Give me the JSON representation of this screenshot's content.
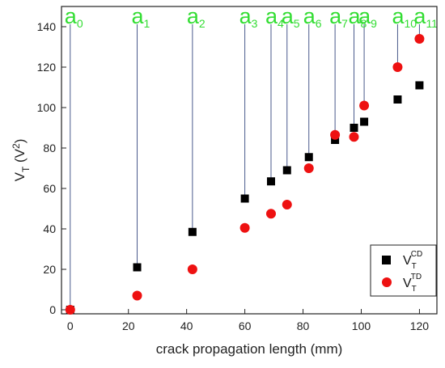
{
  "chart_data": {
    "type": "scatter",
    "xlabel": "crack propagation length (mm)",
    "ylabel": {
      "main": "V",
      "sub": "T",
      "unit_prefix": " (V",
      "unit_sup": "2",
      "unit_suffix": ")"
    },
    "xlim": [
      -3,
      126
    ],
    "ylim": [
      -2,
      150
    ],
    "x_ticks": [
      0,
      20,
      40,
      60,
      80,
      100,
      120
    ],
    "y_ticks": [
      0,
      20,
      40,
      60,
      80,
      100,
      120,
      140
    ],
    "grid": false,
    "legend_position": "bottom-right",
    "series": [
      {
        "name": {
          "main": "V",
          "sub": "T",
          "sup": "CD"
        },
        "marker": "square",
        "color": "#000000",
        "x": [
          0,
          23,
          42,
          60,
          69,
          74.5,
          82,
          91,
          97.5,
          101,
          112.5,
          120
        ],
        "y": [
          0,
          21,
          38.5,
          55,
          63.5,
          69,
          75.5,
          84,
          90,
          93,
          104,
          111
        ]
      },
      {
        "name": {
          "main": "V",
          "sub": "T",
          "sup": "TD"
        },
        "marker": "circle",
        "color": "#ee1111",
        "x": [
          0,
          23,
          42,
          60,
          69,
          74.5,
          82,
          91,
          97.5,
          101,
          112.5,
          120
        ],
        "y": [
          0,
          7,
          20,
          40.5,
          47.5,
          52,
          70,
          86.5,
          85.5,
          101,
          120,
          134
        ]
      }
    ],
    "annotations": {
      "line_color": "#4a5a8c",
      "label_color": "#33dd33",
      "items": [
        {
          "main": "a",
          "sub": "0",
          "x": 0
        },
        {
          "main": "a",
          "sub": "1",
          "x": 23
        },
        {
          "main": "a",
          "sub": "2",
          "x": 42
        },
        {
          "main": "a",
          "sub": "3",
          "x": 60
        },
        {
          "main": "a",
          "sub": "4",
          "x": 69
        },
        {
          "main": "a",
          "sub": "5",
          "x": 74.5
        },
        {
          "main": "a",
          "sub": "6",
          "x": 82
        },
        {
          "main": "a",
          "sub": "7",
          "x": 91
        },
        {
          "main": "a",
          "sub": "8",
          "x": 97.5
        },
        {
          "main": "a",
          "sub": "9",
          "x": 101
        },
        {
          "main": "a",
          "sub": "10",
          "x": 112.5
        },
        {
          "main": "a",
          "sub": "11",
          "x": 120
        }
      ]
    }
  }
}
